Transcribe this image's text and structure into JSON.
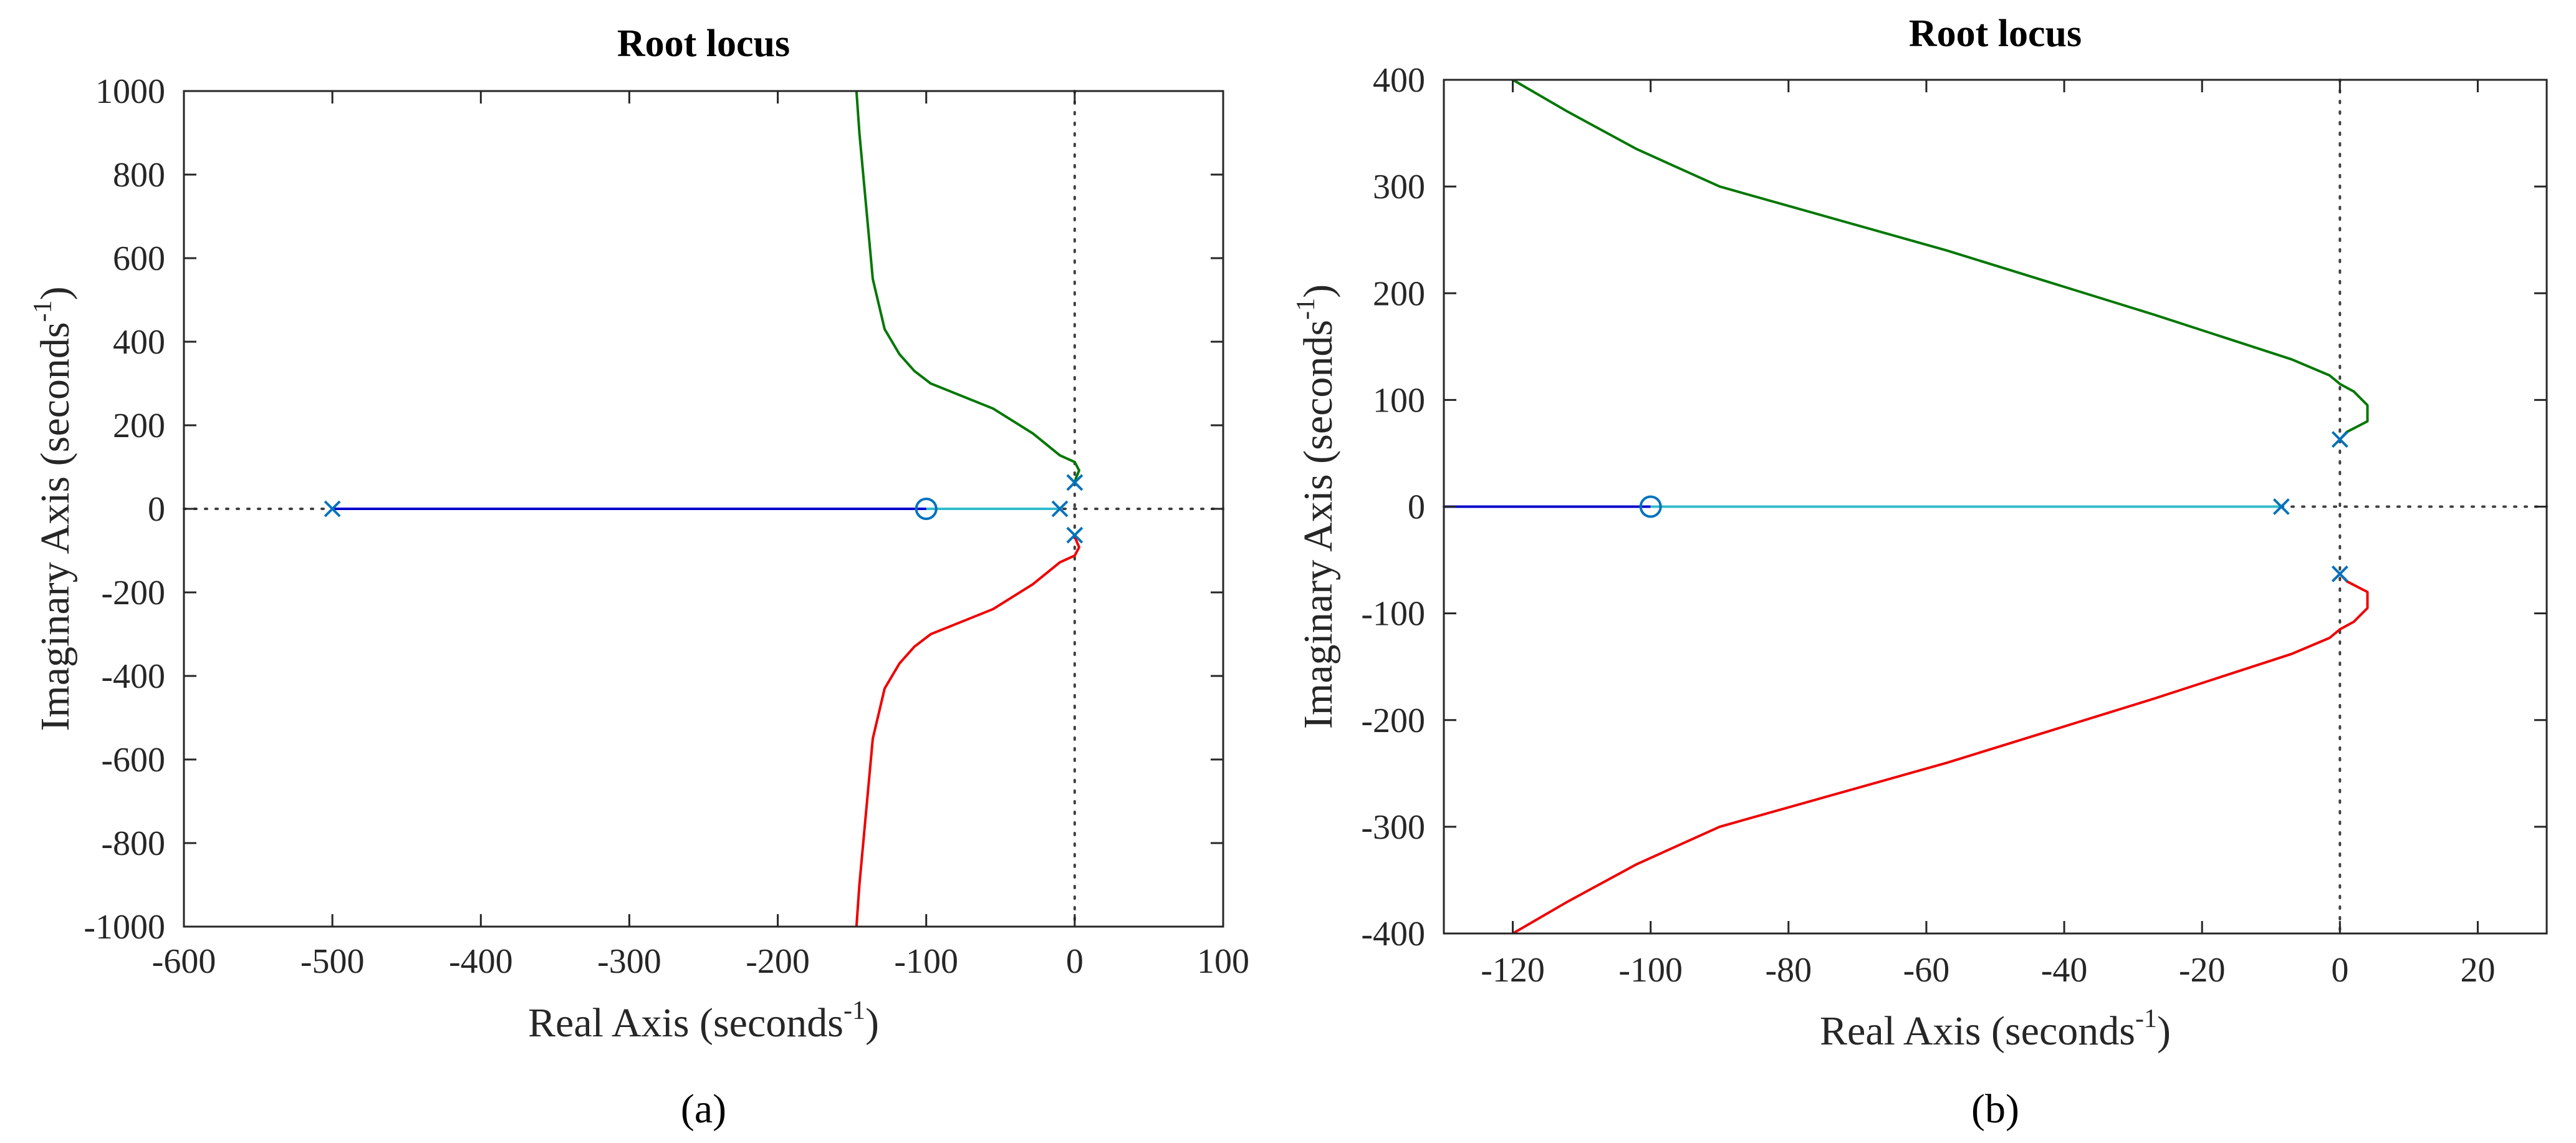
{
  "colors": {
    "branch_blue": "#0000cc",
    "branch_cyan": "#33bbcc",
    "branch_green": "#007700",
    "branch_red": "#ee0000",
    "pole_zero_marker": "#0072bd",
    "axis": "#262626"
  },
  "chart_data": [
    {
      "type": "line",
      "panel_caption": "(a)",
      "title": "Root locus",
      "xlabel": "Real Axis (seconds",
      "xlabel_sup": "-1",
      "xlabel_end": ")",
      "ylabel": "Imaginary Axis (seconds",
      "ylabel_sup": "-1",
      "ylabel_end": ")",
      "xlim": [
        -600,
        100
      ],
      "ylim": [
        -1000,
        1000
      ],
      "xticks": [
        -600,
        -500,
        -400,
        -300,
        -200,
        -100,
        0,
        100
      ],
      "yticks": [
        -1000,
        -800,
        -600,
        -400,
        -200,
        0,
        200,
        400,
        600,
        800,
        1000
      ],
      "poles": [
        [
          -500,
          0
        ],
        [
          -10,
          0
        ],
        [
          0,
          63
        ],
        [
          0,
          -63
        ]
      ],
      "zeros": [
        [
          -100,
          0
        ]
      ],
      "series": [
        {
          "name": "branch-1",
          "color": "#0000cc",
          "points": [
            [
              -500,
              0
            ],
            [
              -100,
              0
            ]
          ]
        },
        {
          "name": "branch-2",
          "color": "#33bbcc",
          "points": [
            [
              -10,
              0
            ],
            [
              -100,
              0
            ]
          ]
        },
        {
          "name": "branch-3",
          "color": "#007700",
          "points": [
            [
              0,
              63
            ],
            [
              1,
              75
            ],
            [
              3,
              92
            ],
            [
              0,
              112
            ],
            [
              -10,
              128
            ],
            [
              -28,
              180
            ],
            [
              -55,
              240
            ],
            [
              -97,
              300
            ],
            [
              -108,
              330
            ],
            [
              -118,
              370
            ],
            [
              -128,
              430
            ],
            [
              -136,
              550
            ],
            [
              -145,
              900
            ],
            [
              -147,
              1000
            ]
          ]
        },
        {
          "name": "branch-4",
          "color": "#ee0000",
          "points": [
            [
              0,
              -63
            ],
            [
              1,
              -75
            ],
            [
              3,
              -92
            ],
            [
              0,
              -112
            ],
            [
              -10,
              -128
            ],
            [
              -28,
              -180
            ],
            [
              -55,
              -240
            ],
            [
              -97,
              -300
            ],
            [
              -108,
              -330
            ],
            [
              -118,
              -370
            ],
            [
              -128,
              -430
            ],
            [
              -136,
              -550
            ],
            [
              -145,
              -900
            ],
            [
              -147,
              -1000
            ]
          ]
        }
      ]
    },
    {
      "type": "line",
      "panel_caption": "(b)",
      "title": "Root locus",
      "xlabel": "Real Axis (seconds",
      "xlabel_sup": "-1",
      "xlabel_end": ")",
      "ylabel": "Imaginary Axis (seconds",
      "ylabel_sup": "-1",
      "ylabel_end": ")",
      "xlim": [
        -130,
        30
      ],
      "ylim": [
        -400,
        400
      ],
      "xticks": [
        -120,
        -100,
        -80,
        -60,
        -40,
        -20,
        0,
        20
      ],
      "yticks": [
        -400,
        -300,
        -200,
        -100,
        0,
        100,
        200,
        300,
        400
      ],
      "poles": [
        [
          -8.5,
          0
        ],
        [
          0,
          63
        ],
        [
          0,
          -63
        ]
      ],
      "zeros": [
        [
          -100,
          0
        ]
      ],
      "series": [
        {
          "name": "branch-1",
          "color": "#0000cc",
          "points": [
            [
              -130,
              0
            ],
            [
              -100,
              0
            ]
          ]
        },
        {
          "name": "branch-2",
          "color": "#33bbcc",
          "points": [
            [
              -8.5,
              0
            ],
            [
              -100,
              0
            ]
          ]
        },
        {
          "name": "branch-3",
          "color": "#007700",
          "points": [
            [
              0,
              63
            ],
            [
              1,
              70
            ],
            [
              4,
              80
            ],
            [
              4,
              95
            ],
            [
              2,
              108
            ],
            [
              0,
              115
            ],
            [
              -1.5,
              123
            ],
            [
              -7,
              138
            ],
            [
              -27,
              180
            ],
            [
              -57,
              240
            ],
            [
              -90,
              300
            ],
            [
              -102,
              335
            ],
            [
              -112,
              370
            ],
            [
              -120,
              400
            ]
          ]
        },
        {
          "name": "branch-4",
          "color": "#ee0000",
          "points": [
            [
              0,
              -63
            ],
            [
              1,
              -70
            ],
            [
              4,
              -80
            ],
            [
              4,
              -95
            ],
            [
              2,
              -108
            ],
            [
              0,
              -115
            ],
            [
              -1.5,
              -123
            ],
            [
              -7,
              -138
            ],
            [
              -27,
              -180
            ],
            [
              -57,
              -240
            ],
            [
              -90,
              -300
            ],
            [
              -102,
              -335
            ],
            [
              -112,
              -370
            ],
            [
              -120,
              -400
            ]
          ]
        }
      ]
    }
  ]
}
